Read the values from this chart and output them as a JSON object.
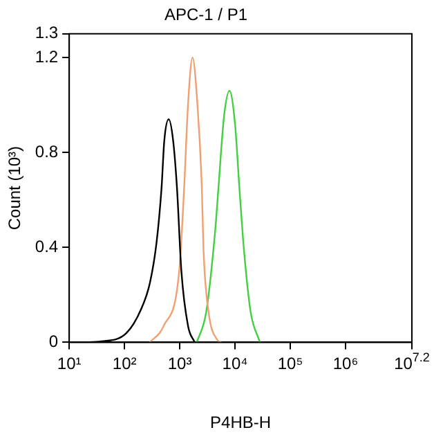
{
  "chart_data": {
    "type": "line",
    "title": "APC-1 / P1",
    "xlabel": "P4HB-H",
    "ylabel": "Count (10³)",
    "log": "x",
    "grid": false,
    "legend": false,
    "marker": "none",
    "line_style": "solid",
    "xlim": [
      10,
      15848932
    ],
    "xticks": [
      {
        "value": 10,
        "label": "10¹"
      },
      {
        "value": 100,
        "label": "10²"
      },
      {
        "value": 1000,
        "label": "10³"
      },
      {
        "value": 10000,
        "label": "10⁴"
      },
      {
        "value": 100000,
        "label": "10⁵"
      },
      {
        "value": 1000000,
        "label": "10⁶"
      },
      {
        "value": 15848932,
        "label": "10$^{7.2}$"
      }
    ],
    "ylim": [
      0,
      1.3
    ],
    "yticks": [
      0,
      0.4,
      0.8,
      1.2,
      1.3
    ],
    "series": [
      {
        "color": "#000000",
        "x": [
          18,
          38,
          107,
          200,
          288,
          380,
          468,
          525,
          631,
          759,
          891,
          1070,
          1410,
          1860
        ],
        "values": [
          0,
          0.004,
          0.038,
          0.14,
          0.25,
          0.42,
          0.65,
          0.85,
          0.94,
          0.85,
          0.65,
          0.3,
          0.07,
          0
        ]
      },
      {
        "color": "#f0a070",
        "x": [
          288,
          513,
          977,
          1200,
          1410,
          1700,
          2090,
          2510,
          2690,
          3310,
          4790,
          5620
        ],
        "values": [
          0,
          0.07,
          0.3,
          0.65,
          1.0,
          1.2,
          1.0,
          0.65,
          0.39,
          0.13,
          0.01,
          0
        ]
      },
      {
        "color": "#40d040",
        "x": [
          2040,
          3020,
          4370,
          5010,
          6310,
          7940,
          10000,
          12000,
          14500,
          19100,
          28200
        ],
        "values": [
          0,
          0.13,
          0.47,
          0.65,
          0.95,
          1.06,
          0.92,
          0.65,
          0.39,
          0.13,
          0
        ]
      }
    ]
  }
}
